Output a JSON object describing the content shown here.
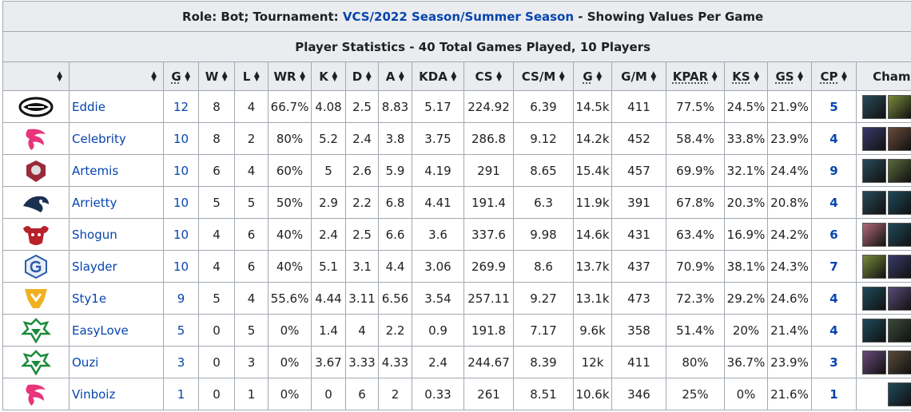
{
  "title": {
    "prefix": "Role: Bot; Tournament: ",
    "tournament_link": "VCS/2022 Season/Summer Season",
    "suffix": " - Showing Values Per Game"
  },
  "subtitle": "Player Statistics - 40 Total Games Played, 10 Players",
  "headers": [
    "",
    "",
    "G",
    "W",
    "L",
    "WR",
    "K",
    "D",
    "A",
    "KDA",
    "CS",
    "CS/M",
    "G",
    "G/M",
    "KPAR",
    "KS",
    "GS",
    "CP",
    "Champs"
  ],
  "rows": [
    {
      "team": "Team Secret",
      "player": "Eddie",
      "g": "12",
      "w": "8",
      "l": "4",
      "wr": "66.7%",
      "k": "4.08",
      "d": "2.5",
      "a": "8.83",
      "kda": "5.17",
      "cs": "224.92",
      "csm": "6.39",
      "gold": "14.5k",
      "gm": "411",
      "kpar": "77.5%",
      "ks": "24.5%",
      "gs": "21.9%",
      "cp": "5",
      "champs": [
        "#2a4a5a",
        "#7a8a3a",
        "#2a3050"
      ]
    },
    {
      "team": "Team Flash",
      "player": "Celebrity",
      "g": "10",
      "w": "8",
      "l": "2",
      "wr": "80%",
      "k": "5.2",
      "d": "2.4",
      "a": "3.8",
      "kda": "3.75",
      "cs": "286.8",
      "csm": "9.12",
      "gold": "14.2k",
      "gm": "452",
      "kpar": "58.4%",
      "ks": "33.8%",
      "gs": "23.9%",
      "cp": "4",
      "champs": [
        "#3a3a6a",
        "#6a4a3a",
        "#1f4a5a"
      ]
    },
    {
      "team": "Team Whales",
      "player": "Artemis",
      "g": "10",
      "w": "6",
      "l": "4",
      "wr": "60%",
      "k": "5",
      "d": "2.6",
      "a": "5.9",
      "kda": "4.19",
      "cs": "291",
      "csm": "8.65",
      "gold": "15.4k",
      "gm": "457",
      "kpar": "69.9%",
      "ks": "32.1%",
      "gs": "24.4%",
      "cp": "9",
      "champs": [
        "#2a4a5a",
        "#5a6a3a",
        "#7a2a3a"
      ]
    },
    {
      "team": "Luxury Esports",
      "player": "Arrietty",
      "g": "10",
      "w": "5",
      "l": "5",
      "wr": "50%",
      "k": "2.9",
      "d": "2.2",
      "a": "6.8",
      "kda": "4.41",
      "cs": "191.4",
      "csm": "6.3",
      "gold": "11.9k",
      "gm": "391",
      "kpar": "67.8%",
      "ks": "20.3%",
      "gs": "20.8%",
      "cp": "4",
      "champs": [
        "#2a4a5a",
        "#1f4a5a",
        "#4a3a6a"
      ]
    },
    {
      "team": "SBTC Esports",
      "player": "Shogun",
      "g": "10",
      "w": "4",
      "l": "6",
      "wr": "40%",
      "k": "2.4",
      "d": "2.5",
      "a": "6.6",
      "kda": "3.6",
      "cs": "337.6",
      "csm": "9.98",
      "gold": "14.6k",
      "gm": "431",
      "kpar": "63.4%",
      "ks": "16.9%",
      "gs": "24.2%",
      "cp": "6",
      "champs": [
        "#b06a7a",
        "#1f4a5a",
        "#2a3050"
      ]
    },
    {
      "team": "GAM Esports",
      "player": "Slayder",
      "g": "10",
      "w": "4",
      "l": "6",
      "wr": "40%",
      "k": "5.1",
      "d": "3.1",
      "a": "4.4",
      "kda": "3.06",
      "cs": "269.9",
      "csm": "8.6",
      "gold": "13.7k",
      "gm": "437",
      "kpar": "70.9%",
      "ks": "38.1%",
      "gs": "24.3%",
      "cp": "7",
      "champs": [
        "#7a8a3a",
        "#3a3a6a",
        "#3a5a3a"
      ]
    },
    {
      "team": "Saigon Buffalo",
      "player": "Sty1e",
      "g": "9",
      "w": "5",
      "l": "4",
      "wr": "55.6%",
      "k": "4.44",
      "d": "3.11",
      "a": "6.56",
      "kda": "3.54",
      "cs": "257.11",
      "csm": "9.27",
      "gold": "13.1k",
      "gm": "473",
      "kpar": "72.3%",
      "ks": "29.2%",
      "gs": "24.6%",
      "cp": "4",
      "champs": [
        "#1f4a5a",
        "#5a4a7a",
        "#6a4a6a"
      ]
    },
    {
      "team": "CERBERUS Esports",
      "player": "EasyLove",
      "g": "5",
      "w": "0",
      "l": "5",
      "wr": "0%",
      "k": "1.4",
      "d": "4",
      "a": "2.2",
      "kda": "0.9",
      "cs": "191.8",
      "csm": "7.17",
      "gold": "9.6k",
      "gm": "358",
      "kpar": "51.4%",
      "ks": "20%",
      "gs": "21.4%",
      "cp": "4",
      "champs": [
        "#1f4a5a",
        "#3a4a3a",
        "#8a6a3a"
      ]
    },
    {
      "team": "CERBERUS Esports",
      "player": "Ouzi",
      "g": "3",
      "w": "0",
      "l": "3",
      "wr": "0%",
      "k": "3.67",
      "d": "3.33",
      "a": "4.33",
      "kda": "2.4",
      "cs": "244.67",
      "csm": "8.39",
      "gold": "12k",
      "gm": "411",
      "kpar": "80%",
      "ks": "36.7%",
      "gs": "23.9%",
      "cp": "3",
      "champs": [
        "#6a4a7a",
        "#5a4a3a",
        "#2a3050"
      ]
    },
    {
      "team": "Team Flash",
      "player": "Vinboiz",
      "g": "1",
      "w": "0",
      "l": "1",
      "wr": "0%",
      "k": "0",
      "d": "6",
      "a": "2",
      "kda": "0.33",
      "cs": "261",
      "csm": "8.51",
      "gold": "10.6k",
      "gm": "346",
      "kpar": "25%",
      "ks": "0%",
      "gs": "21.6%",
      "cp": "1",
      "champs": [
        "#1f4a5a"
      ]
    }
  ]
}
